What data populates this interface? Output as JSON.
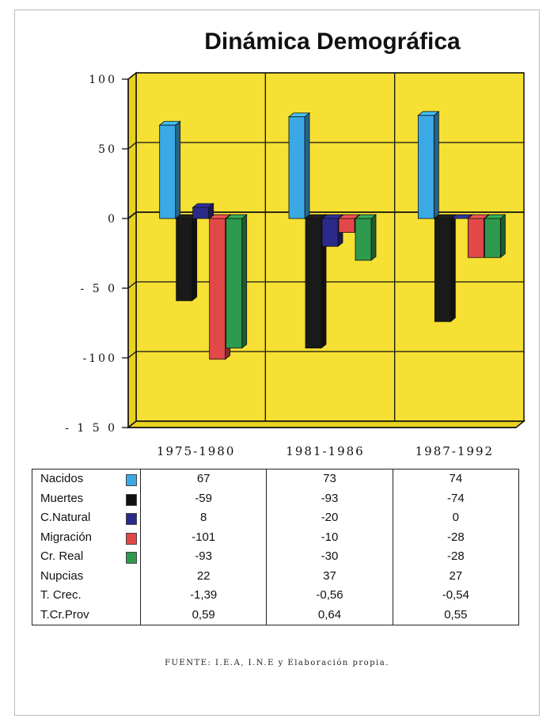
{
  "title": "Dinámica Demográfica",
  "source_note": "FUENTE: I.E.A, I.N.E y Elaboración propia.",
  "chart_data": {
    "type": "bar",
    "categories": [
      "1975-1980",
      "1981-1986",
      "1987-1992"
    ],
    "ylim": [
      -150,
      100
    ],
    "yticks": [
      100,
      50,
      0,
      -50,
      -100,
      -150
    ],
    "ytick_labels": [
      "100",
      "50",
      "0",
      "- 5 0",
      "-100",
      "- 1 5 0"
    ],
    "grid": true,
    "plot_background": "#f5e033",
    "series": [
      {
        "name": "Nacidos",
        "color": "#3aa9e6",
        "values": [
          67,
          73,
          74
        ]
      },
      {
        "name": "Muertes",
        "color": "#1a1a1a",
        "values": [
          -59,
          -93,
          -74
        ]
      },
      {
        "name": "C.Natural",
        "color": "#2a2a8a",
        "values": [
          8,
          -20,
          0
        ]
      },
      {
        "name": "Migración",
        "color": "#e24848",
        "values": [
          -101,
          -10,
          -28
        ]
      },
      {
        "name": "Cr. Real",
        "color": "#2e9a4e",
        "values": [
          -93,
          -30,
          -28
        ]
      }
    ]
  },
  "table": {
    "rows": [
      {
        "label": "Nacidos",
        "swatch": "#3aa9e6",
        "values": [
          "67",
          "73",
          "74"
        ]
      },
      {
        "label": "Muertes",
        "swatch": "#111111",
        "values": [
          "-59",
          "-93",
          "-74"
        ]
      },
      {
        "label": "C.Natural",
        "swatch": "#2a2a8a",
        "values": [
          "8",
          "-20",
          "0"
        ]
      },
      {
        "label": "Migración",
        "swatch": "#e24848",
        "values": [
          "-101",
          "-10",
          "-28"
        ]
      },
      {
        "label": "Cr. Real",
        "swatch": "#2e9a4e",
        "values": [
          "-93",
          "-30",
          "-28"
        ]
      },
      {
        "label": "Nupcias",
        "swatch": "",
        "values": [
          "22",
          "37",
          "27"
        ]
      },
      {
        "label": "T. Crec.",
        "swatch": "",
        "values": [
          "-1,39",
          "-0,56",
          "-0,54"
        ]
      },
      {
        "label": "T.Cr.Prov",
        "swatch": "",
        "values": [
          "0,59",
          "0,64",
          "0,55"
        ]
      }
    ]
  }
}
